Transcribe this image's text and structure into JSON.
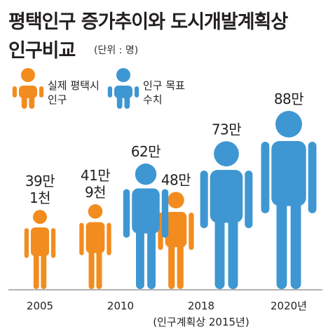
{
  "header": {
    "title_line1": "평택인구 증가추이와 도시개발계획상",
    "title_line2": "인구비교",
    "unit": "(단위 : 명)"
  },
  "chart_data": {
    "type": "bar",
    "categories": [
      "2005",
      "2010",
      "2018",
      "2020년"
    ],
    "category_note": "(인구계획상 2015년)",
    "series": [
      {
        "name": "실제 평택시 인구",
        "color": "#f28c1e",
        "values": [
          391000,
          419000,
          480000,
          null
        ],
        "labels": [
          [
            "39만",
            "1천"
          ],
          [
            "41만",
            "9천"
          ],
          [
            "48만"
          ],
          null
        ]
      },
      {
        "name": "인구 목표 수치",
        "color": "#3e97d2",
        "values": [
          null,
          620000,
          730000,
          880000
        ],
        "labels": [
          null,
          [
            "62만"
          ],
          [
            "73만"
          ],
          [
            "88만"
          ]
        ]
      }
    ],
    "legend": [
      {
        "lines": [
          "실제 평택시",
          "인구"
        ],
        "color": "#f28c1e",
        "icon": "person-icon"
      },
      {
        "lines": [
          "인구 목표",
          "수치"
        ],
        "color": "#3e97d2",
        "icon": "person-icon"
      }
    ],
    "ylim": [
      0,
      880000
    ],
    "grid": false,
    "axis_color": "#999999"
  }
}
